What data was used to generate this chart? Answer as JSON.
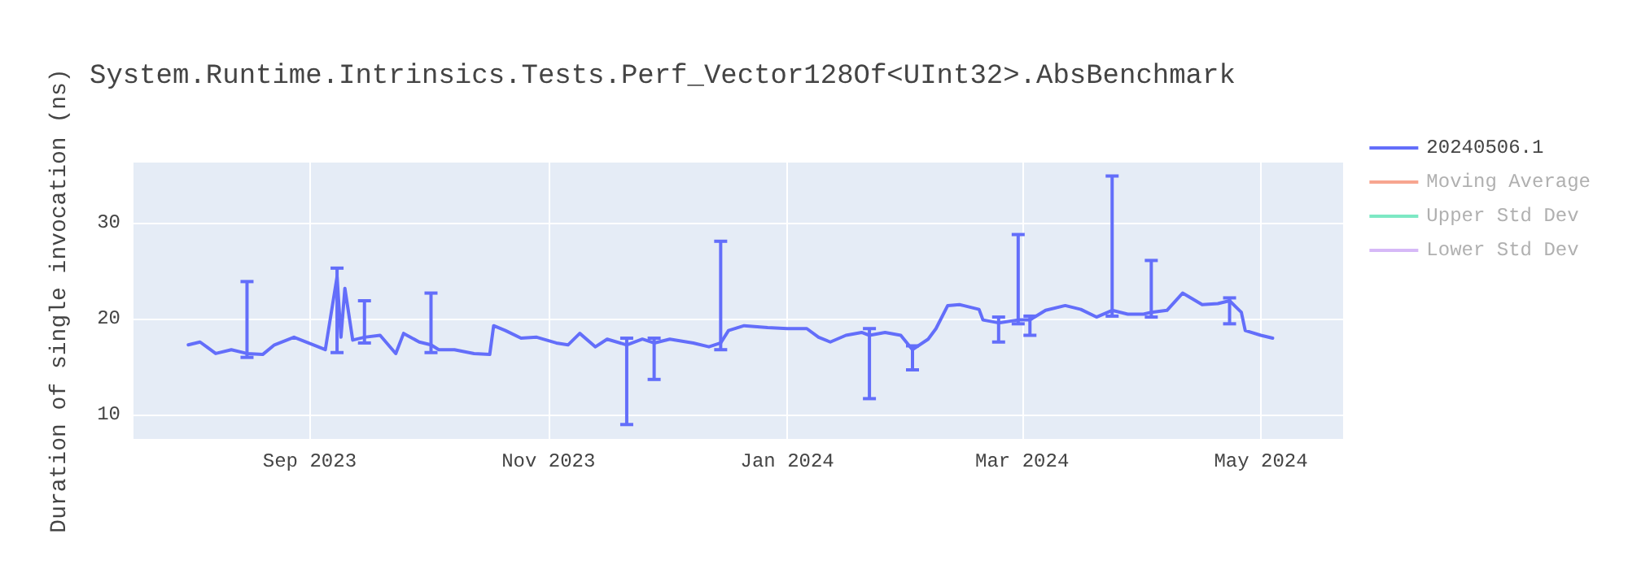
{
  "chart_data": {
    "type": "line",
    "title": "System.Runtime.Intrinsics.Tests.Perf_Vector128Of<UInt32>.AbsBenchmark",
    "ylabel": "Duration of single invocation (ns)",
    "x": [
      "2023-08-01",
      "2023-08-04",
      "2023-08-08",
      "2023-08-12",
      "2023-08-16",
      "2023-08-20",
      "2023-08-23",
      "2023-08-28",
      "2023-09-02",
      "2023-09-05",
      "2023-09-08",
      "2023-09-09",
      "2023-09-10",
      "2023-09-12",
      "2023-09-15",
      "2023-09-19",
      "2023-09-23",
      "2023-09-25",
      "2023-09-29",
      "2023-10-02",
      "2023-10-04",
      "2023-10-08",
      "2023-10-13",
      "2023-10-17",
      "2023-10-18",
      "2023-10-21",
      "2023-10-25",
      "2023-10-29",
      "2023-11-03",
      "2023-11-06",
      "2023-11-09",
      "2023-11-13",
      "2023-11-16",
      "2023-11-21",
      "2023-11-25",
      "2023-11-28",
      "2023-12-02",
      "2023-12-08",
      "2023-12-12",
      "2023-12-15",
      "2023-12-17",
      "2023-12-21",
      "2023-12-27",
      "2024-01-01",
      "2024-01-06",
      "2024-01-09",
      "2024-01-12",
      "2024-01-16",
      "2024-01-20",
      "2024-01-22",
      "2024-01-26",
      "2024-01-30",
      "2024-02-02",
      "2024-02-06",
      "2024-02-08",
      "2024-02-11",
      "2024-02-14",
      "2024-02-15",
      "2024-02-19",
      "2024-02-20",
      "2024-02-24",
      "2024-02-29",
      "2024-03-03",
      "2024-03-07",
      "2024-03-12",
      "2024-03-16",
      "2024-03-20",
      "2024-03-24",
      "2024-03-28",
      "2024-04-01",
      "2024-04-03",
      "2024-04-07",
      "2024-04-11",
      "2024-04-16",
      "2024-04-20",
      "2024-04-23",
      "2024-04-26",
      "2024-04-27",
      "2024-05-01",
      "2024-05-04"
    ],
    "series": [
      {
        "name": "20240506.1",
        "color": "#636efa",
        "values": [
          17.3,
          17.6,
          16.4,
          16.8,
          16.4,
          16.3,
          17.3,
          18.1,
          17.3,
          16.8,
          24.4,
          18.1,
          23.2,
          17.8,
          18.1,
          18.3,
          16.4,
          18.5,
          17.6,
          17.3,
          16.8,
          16.8,
          16.4,
          16.3,
          19.3,
          18.8,
          18.0,
          18.1,
          17.5,
          17.3,
          18.5,
          17.1,
          17.9,
          17.3,
          17.9,
          17.5,
          17.9,
          17.5,
          17.1,
          17.5,
          18.8,
          19.3,
          19.1,
          19.0,
          19.0,
          18.1,
          17.6,
          18.3,
          18.6,
          18.3,
          18.6,
          18.3,
          16.8,
          17.9,
          19.0,
          21.4,
          21.5,
          21.4,
          21.0,
          19.9,
          19.6,
          19.9,
          19.9,
          20.9,
          21.4,
          21.0,
          20.2,
          20.9,
          20.5,
          20.5,
          20.7,
          20.9,
          22.7,
          21.5,
          21.6,
          21.9,
          20.7,
          18.8,
          18.3,
          18.0
        ],
        "errors": [
          null,
          null,
          null,
          null,
          [
            16.0,
            23.9
          ],
          null,
          null,
          null,
          null,
          null,
          [
            16.5,
            25.3
          ],
          null,
          null,
          null,
          [
            17.5,
            21.9
          ],
          null,
          null,
          null,
          null,
          [
            16.5,
            22.7
          ],
          null,
          null,
          null,
          null,
          null,
          null,
          null,
          null,
          null,
          null,
          null,
          null,
          null,
          [
            9.0,
            18.0
          ],
          null,
          [
            13.7,
            18.0
          ],
          null,
          null,
          null,
          [
            16.8,
            28.1
          ],
          null,
          null,
          null,
          null,
          null,
          null,
          null,
          null,
          null,
          [
            11.7,
            19.0
          ],
          null,
          null,
          [
            14.7,
            17.2
          ],
          null,
          null,
          null,
          null,
          null,
          null,
          null,
          [
            17.6,
            20.2
          ],
          [
            19.5,
            28.8
          ],
          [
            18.3,
            20.3
          ],
          null,
          null,
          null,
          null,
          [
            20.3,
            34.9
          ],
          null,
          null,
          [
            20.2,
            26.1
          ],
          null,
          null,
          null,
          null,
          [
            19.5,
            22.2
          ],
          null,
          null,
          null,
          null
        ]
      },
      {
        "name": "Moving Average",
        "color": "#f7a58f",
        "values": [
          null,
          null,
          null,
          null,
          null,
          null,
          null,
          null,
          null,
          null,
          null,
          null,
          null,
          null,
          null,
          null,
          null,
          null,
          null,
          null,
          null,
          null,
          null,
          null,
          null,
          null,
          null,
          null,
          null,
          null,
          null,
          null,
          null,
          null,
          null,
          null,
          null,
          null,
          null,
          null,
          null,
          null,
          null,
          null,
          null,
          null,
          null,
          null,
          null,
          null,
          null,
          null,
          null,
          null,
          null,
          null,
          null,
          null,
          null,
          null,
          null,
          null,
          null,
          null,
          null,
          null,
          null,
          null,
          null,
          null,
          null,
          null,
          null,
          null,
          null,
          null,
          null,
          null,
          null,
          null
        ]
      },
      {
        "name": "Upper Std Dev",
        "color": "#7de8c4",
        "values": [
          null,
          null,
          null,
          null,
          null,
          null,
          null,
          null,
          null,
          null,
          null,
          null,
          null,
          null,
          null,
          null,
          null,
          null,
          null,
          null,
          null,
          null,
          null,
          null,
          null,
          null,
          null,
          null,
          null,
          null,
          null,
          null,
          null,
          null,
          null,
          null,
          null,
          null,
          null,
          null,
          null,
          null,
          null,
          null,
          null,
          null,
          null,
          null,
          null,
          null,
          null,
          null,
          null,
          null,
          null,
          null,
          null,
          null,
          null,
          null,
          null,
          null,
          null,
          null,
          null,
          null,
          null,
          null,
          null,
          null,
          null,
          null,
          null,
          null,
          null,
          null,
          null,
          null,
          null,
          null
        ]
      },
      {
        "name": "Lower Std Dev",
        "color": "#d6b8f7",
        "values": [
          null,
          null,
          null,
          null,
          null,
          null,
          null,
          null,
          null,
          null,
          null,
          null,
          null,
          null,
          null,
          null,
          null,
          null,
          null,
          null,
          null,
          null,
          null,
          null,
          null,
          null,
          null,
          null,
          null,
          null,
          null,
          null,
          null,
          null,
          null,
          null,
          null,
          null,
          null,
          null,
          null,
          null,
          null,
          null,
          null,
          null,
          null,
          null,
          null,
          null,
          null,
          null,
          null,
          null,
          null,
          null,
          null,
          null,
          null,
          null,
          null,
          null,
          null,
          null,
          null,
          null,
          null,
          null,
          null,
          null,
          null,
          null,
          null,
          null,
          null,
          null,
          null,
          null,
          null,
          null
        ]
      }
    ],
    "xlim": [
      "2023-07-18",
      "2024-05-22"
    ],
    "xticks": [
      {
        "value": "2023-09-01",
        "label": "Sep 2023"
      },
      {
        "value": "2023-11-01",
        "label": "Nov 2023"
      },
      {
        "value": "2024-01-01",
        "label": "Jan 2024"
      },
      {
        "value": "2024-03-01",
        "label": "Mar 2024"
      },
      {
        "value": "2024-05-01",
        "label": "May 2024"
      }
    ],
    "ylim": [
      7.5,
      36.3
    ],
    "yticks": [
      10,
      20,
      30
    ],
    "grid": true,
    "legend": "top right",
    "marker": "none",
    "line_style": "solid"
  }
}
